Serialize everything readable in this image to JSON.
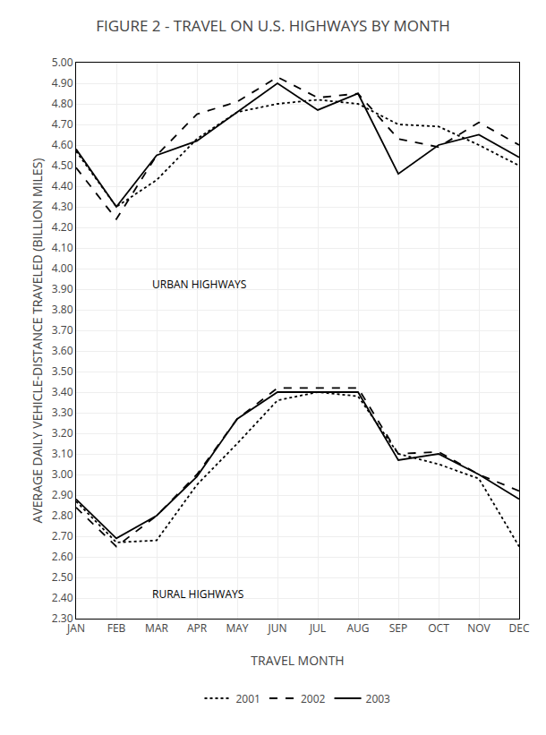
{
  "chart_data": {
    "type": "line",
    "title": "FIGURE 2 - TRAVEL ON U.S. HIGHWAYS BY MONTH",
    "x_label": "TRAVEL MONTH",
    "y_label": "AVERAGE DAILY VEHICLE-DISTANCE TRAVELED (BILLION MILES)",
    "categories": [
      "JAN",
      "FEB",
      "MAR",
      "APR",
      "MAY",
      "JUN",
      "JUL",
      "AUG",
      "SEP",
      "OCT",
      "NOV",
      "DEC"
    ],
    "series": [
      {
        "name": "2001",
        "color": "black",
        "line_style": "dotted",
        "values": [
          4.57,
          4.3,
          4.43,
          4.63,
          4.76,
          4.8,
          4.82,
          4.8,
          4.7,
          4.69,
          4.6,
          4.5
        ]
      },
      {
        "name": "2002",
        "color": "black",
        "line_style": "dashed",
        "values": [
          4.49,
          4.24,
          4.55,
          4.75,
          4.81,
          4.93,
          4.83,
          4.85,
          4.63,
          4.59,
          4.71,
          4.6
        ]
      },
      {
        "name": "2003",
        "color": "black",
        "line_style": "solid",
        "values": [
          4.58,
          4.3,
          4.55,
          4.62,
          4.76,
          4.9,
          4.77,
          4.85,
          4.46,
          4.6,
          4.65,
          4.54
        ]
      },
      {
        "name": "2001",
        "color": "black",
        "line_style": "dotted",
        "values": [
          2.87,
          2.67,
          2.68,
          2.95,
          3.15,
          3.36,
          3.4,
          3.38,
          3.1,
          3.05,
          2.98,
          2.65
        ]
      },
      {
        "name": "2002",
        "color": "black",
        "line_style": "dashed",
        "values": [
          2.84,
          2.65,
          2.8,
          3.0,
          3.27,
          3.42,
          3.42,
          3.42,
          3.1,
          3.11,
          3.0,
          2.92
        ]
      },
      {
        "name": "2003",
        "color": "black",
        "line_style": "solid",
        "values": [
          2.88,
          2.69,
          2.8,
          2.99,
          3.27,
          3.4,
          3.4,
          3.4,
          3.07,
          3.1,
          3.0,
          2.88
        ]
      }
    ],
    "annotations": [
      "URBAN HIGHWAYS",
      "RURAL HIGHWAYS"
    ],
    "ylim": [
      2.3,
      5.0
    ],
    "yticks": [
      {
        "value": 2.3,
        "label": "2.30"
      },
      {
        "value": 2.4,
        "label": "2.40"
      },
      {
        "value": 2.5,
        "label": "2.50"
      },
      {
        "value": 2.6,
        "label": "2.60"
      },
      {
        "value": 2.7,
        "label": "2.70"
      },
      {
        "value": 2.8,
        "label": "2.80"
      },
      {
        "value": 2.9,
        "label": "2.90"
      },
      {
        "value": 3.0,
        "label": "3.00"
      },
      {
        "value": 3.1,
        "label": "3.10"
      },
      {
        "value": 3.2,
        "label": "3.20"
      },
      {
        "value": 3.3,
        "label": "3.30"
      },
      {
        "value": 3.4,
        "label": "3.40"
      },
      {
        "value": 3.5,
        "label": "3.50"
      },
      {
        "value": 3.6,
        "label": "3.60"
      },
      {
        "value": 3.7,
        "label": "3.70"
      },
      {
        "value": 3.8,
        "label": "3.80"
      },
      {
        "value": 3.9,
        "label": "3.90"
      },
      {
        "value": 4.0,
        "label": "4.00"
      },
      {
        "value": 4.1,
        "label": "4.10"
      },
      {
        "value": 4.2,
        "label": "4.20"
      },
      {
        "value": 4.3,
        "label": "4.30"
      },
      {
        "value": 4.4,
        "label": "4.40"
      },
      {
        "value": 4.5,
        "label": "4.50"
      },
      {
        "value": 4.6,
        "label": "4.60"
      },
      {
        "value": 4.7,
        "label": "4.70"
      },
      {
        "value": 4.8,
        "label": "4.80"
      },
      {
        "value": 4.9,
        "label": "4.90"
      },
      {
        "value": 5.0,
        "label": "5.00"
      }
    ],
    "grid": true,
    "legend": "bottom"
  }
}
